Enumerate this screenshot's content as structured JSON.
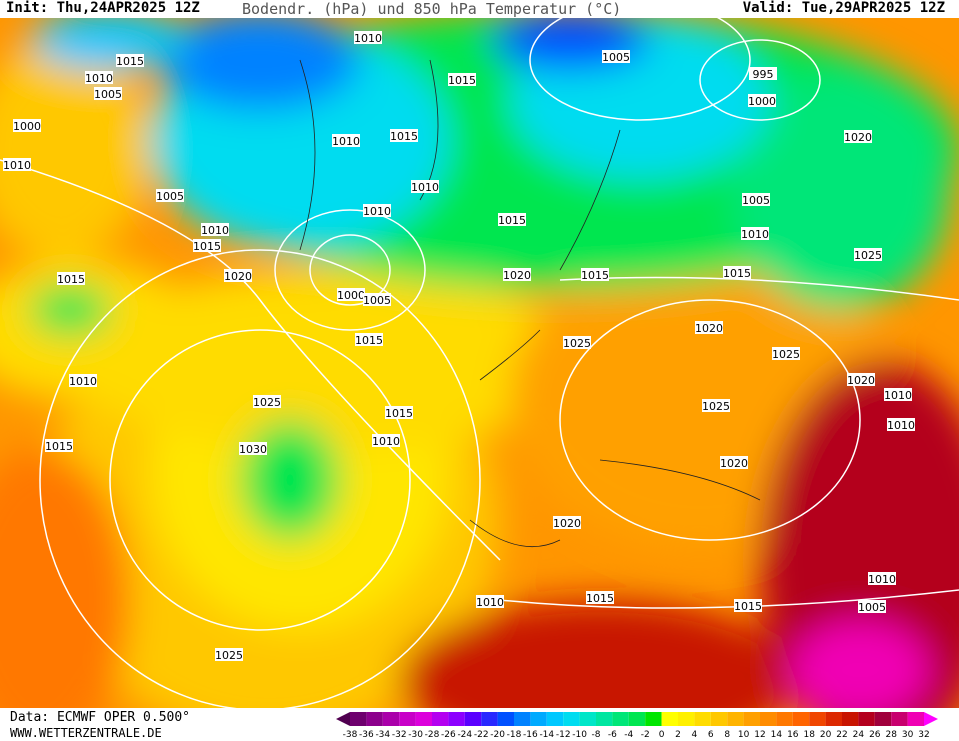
{
  "header": {
    "init": "Init: Thu,24APR2025 12Z",
    "title": "Bodendr. (hPa) und 850 hPa Temperatur (°C)",
    "valid": "Valid: Tue,29APR2025 12Z"
  },
  "footer": {
    "source": "Data: ECMWF OPER 0.500°",
    "website": "WWW.WETTERZENTRALE.DE"
  },
  "colorbar": {
    "ticks": [
      -38,
      -36,
      -34,
      -32,
      -30,
      -28,
      -26,
      -24,
      -22,
      -20,
      -18,
      -16,
      -14,
      -12,
      -10,
      -8,
      -6,
      -4,
      -2,
      0,
      2,
      4,
      6,
      8,
      10,
      12,
      14,
      16,
      18,
      20,
      22,
      24,
      26,
      28,
      30,
      32
    ],
    "colors": [
      "#500050",
      "#6e006e",
      "#8c008c",
      "#aa00aa",
      "#c800c8",
      "#dc00dc",
      "#b400f0",
      "#8c00ff",
      "#5a00ff",
      "#2828ff",
      "#0050ff",
      "#0082ff",
      "#00aaff",
      "#00c8ff",
      "#00dcf0",
      "#00e6c8",
      "#00e6a0",
      "#00e678",
      "#00e650",
      "#00e600",
      "#ffff00",
      "#fff000",
      "#ffdc00",
      "#ffc800",
      "#ffb400",
      "#ffa000",
      "#ff8c00",
      "#ff7800",
      "#ff6400",
      "#f04600",
      "#dc2800",
      "#c81400",
      "#b4001e",
      "#a0003c",
      "#c8006e",
      "#f000b4",
      "#ff00ff"
    ]
  },
  "isobar_labels": [
    "1010",
    "1015",
    "1010",
    "1005",
    "1000",
    "1010",
    "1005",
    "1015",
    "1005",
    "995",
    "1000",
    "1015",
    "1010",
    "1010",
    "1010",
    "1015",
    "1020",
    "1005",
    "1010",
    "1025",
    "1010",
    "1015",
    "1020",
    "1015",
    "1020",
    "1015",
    "1015",
    "1000",
    "1005",
    "1015",
    "1020",
    "1025",
    "1025",
    "1010",
    "1020",
    "1010",
    "1025",
    "1015",
    "1025",
    "1010",
    "1010",
    "1015",
    "1030",
    "1020",
    "1020",
    "1015",
    "1010",
    "1015",
    "1010",
    "1005",
    "1025"
  ]
}
